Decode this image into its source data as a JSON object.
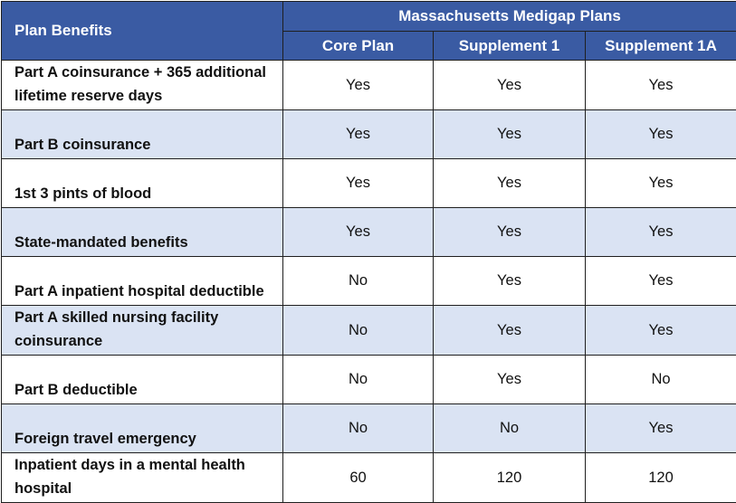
{
  "table": {
    "corner_header": "Plan Benefits",
    "group_header": "Massachusetts Medigap Plans",
    "columns": [
      "Core Plan",
      "Supplement 1",
      "Supplement 1A"
    ],
    "rows": [
      {
        "benefit": "Part A coinsurance + 365 additional lifetime reserve days",
        "values": [
          "Yes",
          "Yes",
          "Yes"
        ]
      },
      {
        "benefit": "Part B coinsurance",
        "values": [
          "Yes",
          "Yes",
          "Yes"
        ]
      },
      {
        "benefit": "1st 3 pints of blood",
        "values": [
          "Yes",
          "Yes",
          "Yes"
        ]
      },
      {
        "benefit": "State-mandated benefits",
        "values": [
          "Yes",
          "Yes",
          "Yes"
        ]
      },
      {
        "benefit": "Part A inpatient hospital deductible",
        "values": [
          "No",
          "Yes",
          "Yes"
        ]
      },
      {
        "benefit": "Part A skilled nursing facility coinsurance",
        "values": [
          "No",
          "Yes",
          "Yes"
        ]
      },
      {
        "benefit": "Part B deductible",
        "values": [
          "No",
          "Yes",
          "No"
        ]
      },
      {
        "benefit": "Foreign travel emergency",
        "values": [
          "No",
          "No",
          "Yes"
        ]
      },
      {
        "benefit": "Inpatient days in a mental health hospital",
        "values": [
          "60",
          "120",
          "120"
        ]
      }
    ]
  },
  "colors": {
    "header_bg": "#3a5ba3",
    "header_text": "#ffffff",
    "row_shade": "#dae3f3",
    "row_white": "#ffffff"
  }
}
